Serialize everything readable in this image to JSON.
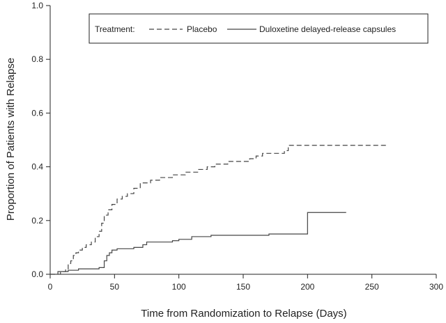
{
  "chart_data": {
    "type": "line",
    "title": "",
    "xlabel": "Time from Randomization to Relapse (Days)",
    "ylabel": "Proportion of Patients with Relapse",
    "xlim": [
      0,
      300
    ],
    "ylim": [
      0,
      1.0
    ],
    "x_ticks": [
      0,
      50,
      100,
      150,
      200,
      250,
      300
    ],
    "y_ticks": [
      0.0,
      0.2,
      0.4,
      0.6,
      0.8,
      1.0
    ],
    "x_tick_labels": [
      "0",
      "50",
      "100",
      "150",
      "200",
      "250",
      "300"
    ],
    "y_tick_labels": [
      "0.0",
      "0.2",
      "0.4",
      "0.6",
      "0.8",
      "1.0"
    ],
    "grid": false,
    "legend": {
      "position": "top-right",
      "title": "Treatment:",
      "entries": [
        "Placebo",
        "Duloxetine delayed-release capsules"
      ]
    },
    "series": [
      {
        "name": "Placebo",
        "style": "dashed",
        "color": "#444444",
        "step_points": [
          [
            0,
            0.0
          ],
          [
            8,
            0.01
          ],
          [
            12,
            0.02
          ],
          [
            14,
            0.04
          ],
          [
            16,
            0.05
          ],
          [
            18,
            0.07
          ],
          [
            20,
            0.08
          ],
          [
            22,
            0.09
          ],
          [
            25,
            0.1
          ],
          [
            28,
            0.11
          ],
          [
            32,
            0.12
          ],
          [
            35,
            0.14
          ],
          [
            38,
            0.16
          ],
          [
            40,
            0.19
          ],
          [
            42,
            0.22
          ],
          [
            45,
            0.24
          ],
          [
            48,
            0.26
          ],
          [
            52,
            0.28
          ],
          [
            56,
            0.29
          ],
          [
            60,
            0.3
          ],
          [
            65,
            0.32
          ],
          [
            70,
            0.34
          ],
          [
            78,
            0.35
          ],
          [
            85,
            0.36
          ],
          [
            95,
            0.37
          ],
          [
            105,
            0.38
          ],
          [
            115,
            0.39
          ],
          [
            122,
            0.4
          ],
          [
            128,
            0.41
          ],
          [
            138,
            0.42
          ],
          [
            155,
            0.43
          ],
          [
            160,
            0.44
          ],
          [
            165,
            0.45
          ],
          [
            182,
            0.46
          ],
          [
            185,
            0.48
          ],
          [
            262,
            0.48
          ]
        ]
      },
      {
        "name": "Duloxetine delayed-release capsules",
        "style": "solid",
        "color": "#444444",
        "step_points": [
          [
            0,
            0.0
          ],
          [
            6,
            0.01
          ],
          [
            14,
            0.015
          ],
          [
            22,
            0.02
          ],
          [
            38,
            0.025
          ],
          [
            42,
            0.05
          ],
          [
            44,
            0.07
          ],
          [
            46,
            0.08
          ],
          [
            48,
            0.09
          ],
          [
            52,
            0.095
          ],
          [
            65,
            0.1
          ],
          [
            72,
            0.11
          ],
          [
            75,
            0.12
          ],
          [
            95,
            0.125
          ],
          [
            100,
            0.13
          ],
          [
            110,
            0.14
          ],
          [
            125,
            0.145
          ],
          [
            170,
            0.15
          ],
          [
            200,
            0.23
          ],
          [
            230,
            0.23
          ]
        ]
      }
    ]
  }
}
